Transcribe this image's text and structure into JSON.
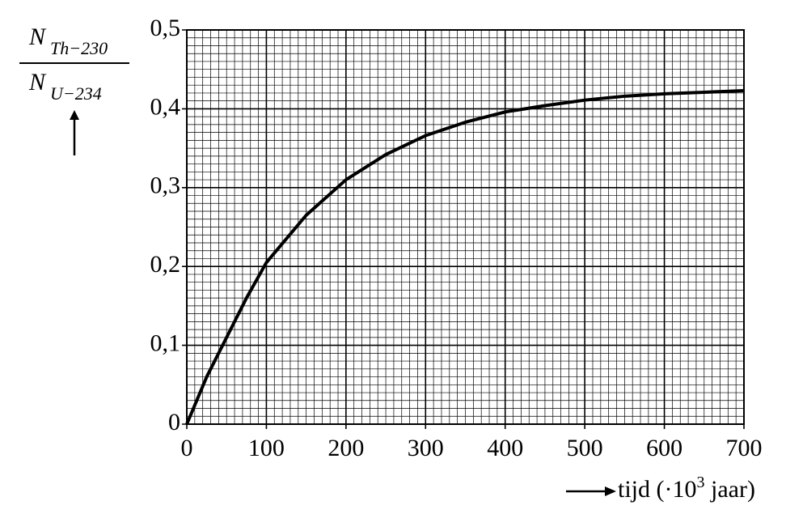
{
  "chart_data": {
    "type": "line",
    "y_label": {
      "numerator": "N",
      "numerator_sub": "Th−230",
      "denominator": "N",
      "denominator_sub": "U−234"
    },
    "x_label": {
      "text": "tijd (·10",
      "sup": "3",
      "tail": " jaar)"
    },
    "x": [
      0,
      25,
      50,
      75,
      100,
      150,
      200,
      250,
      300,
      350,
      400,
      450,
      500,
      550,
      600,
      650,
      700
    ],
    "values": [
      0,
      0.06,
      0.11,
      0.16,
      0.205,
      0.265,
      0.31,
      0.342,
      0.366,
      0.383,
      0.396,
      0.404,
      0.411,
      0.416,
      0.419,
      0.421,
      0.423
    ],
    "color": "#000000",
    "xlim": [
      0,
      700
    ],
    "ylim": [
      0,
      0.5
    ],
    "xticks": [
      0,
      100,
      200,
      300,
      400,
      500,
      600,
      700
    ],
    "yticks": [
      0,
      {
        "value": 0.1,
        "label": "0,1"
      },
      {
        "value": 0.2,
        "label": "0,2"
      },
      {
        "value": 0.3,
        "label": "0,3"
      },
      {
        "value": 0.4,
        "label": "0,4"
      },
      {
        "value": 0.5,
        "label": "0,5"
      }
    ],
    "grid": true,
    "minor_grid": {
      "x": 10,
      "y": 0.01
    }
  }
}
